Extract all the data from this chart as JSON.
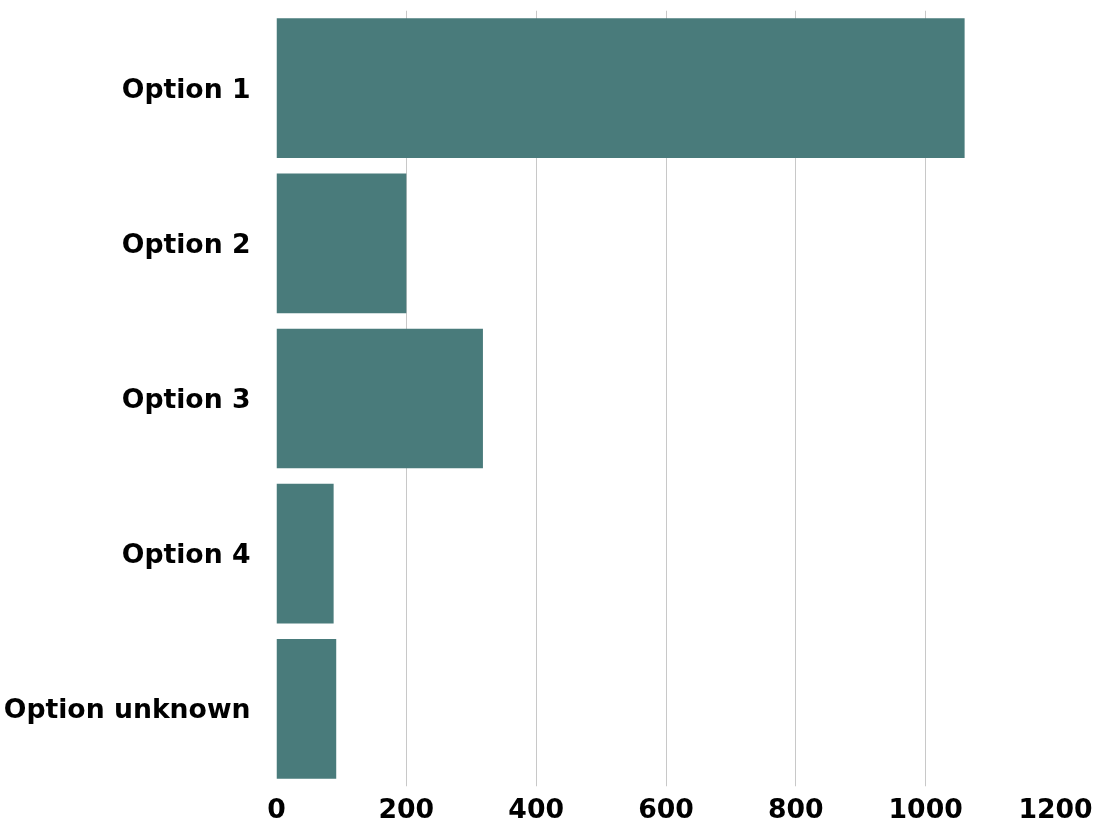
{
  "chart_data": {
    "type": "bar",
    "orientation": "horizontal",
    "categories": [
      "Option 1",
      "Option 2",
      "Option 3",
      "Option 4",
      "Option unknown"
    ],
    "values": [
      1060,
      200,
      318,
      88,
      92
    ],
    "color": "#497b7b",
    "xlim": [
      0,
      1200
    ],
    "xticks": [
      0,
      200,
      400,
      600,
      800,
      1000,
      1200
    ],
    "grid": "x"
  }
}
